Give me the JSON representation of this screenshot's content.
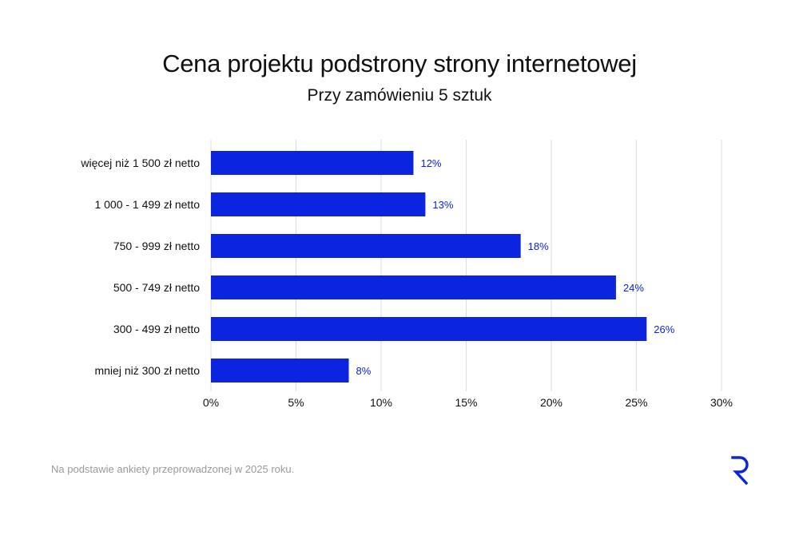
{
  "title": "Cena projektu podstrony strony internetowej",
  "subtitle": "Przy zamówieniu 5 sztuk",
  "footnote": "Na podstawie ankiety przeprowadzonej w 2025 roku.",
  "colors": {
    "bar": "#0A24E0",
    "label": "#0A24E0",
    "grid": "#dddddd",
    "text": "#111111"
  },
  "chart_data": {
    "type": "bar",
    "orientation": "horizontal",
    "categories": [
      "więcej niż 1 500 zł netto",
      "1 000 - 1 499 zł netto",
      "750 - 999 zł netto",
      "500 - 749 zł netto",
      "300 - 499 zł netto",
      "mniej niż 300 zł netto"
    ],
    "values": [
      11.9,
      12.6,
      18.2,
      23.8,
      25.6,
      8.1
    ],
    "data_labels": [
      "12%",
      "13%",
      "18%",
      "24%",
      "26%",
      "8%"
    ],
    "xlim": [
      0,
      30
    ],
    "xticks": [
      0,
      5,
      10,
      15,
      20,
      25,
      30
    ],
    "xtick_labels": [
      "0%",
      "5%",
      "10%",
      "15%",
      "20%",
      "25%",
      "30%"
    ],
    "grid": true
  }
}
